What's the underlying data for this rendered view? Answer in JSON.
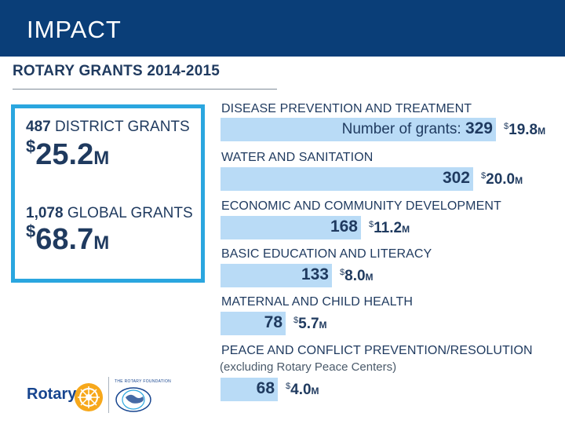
{
  "header": {
    "title": "IMPACT"
  },
  "section": {
    "title": "ROTARY GRANTS 2014-2015"
  },
  "summary": {
    "district": {
      "count": "487",
      "label": "DISTRICT GRANTS",
      "dollar": "$",
      "amount": "25.2",
      "unit": "M"
    },
    "global": {
      "count": "1,078",
      "label": "GLOBAL GRANTS",
      "dollar": "$",
      "amount": "68.7",
      "unit": "M"
    }
  },
  "categories": [
    {
      "label": "DISEASE PREVENTION AND TREATMENT",
      "prefix": "Number of grants: ",
      "grants": "329",
      "dollar": "$",
      "amount": "19.8",
      "unit": "M",
      "grants_value": 329
    },
    {
      "label": "WATER AND SANITATION",
      "prefix": "",
      "grants": "302",
      "dollar": "$",
      "amount": "20.0",
      "unit": "M",
      "grants_value": 302
    },
    {
      "label": "ECONOMIC AND COMMUNITY DEVELOPMENT",
      "prefix": "",
      "grants": "168",
      "dollar": "$",
      "amount": "11.2",
      "unit": "M",
      "grants_value": 168
    },
    {
      "label": "BASIC EDUCATION AND LITERACY",
      "prefix": "",
      "grants": "133",
      "dollar": "$",
      "amount": "8.0",
      "unit": "M",
      "grants_value": 133
    },
    {
      "label": "MATERNAL AND CHILD HEALTH",
      "prefix": "",
      "grants": "78",
      "dollar": "$",
      "amount": "5.7",
      "unit": "M",
      "grants_value": 78
    },
    {
      "label": "PEACE AND CONFLICT PREVENTION/RESOLUTION",
      "sublabel": "(excluding Rotary Peace Centers)",
      "prefix": "",
      "grants": "68",
      "dollar": "$",
      "amount": "4.0",
      "unit": "M",
      "grants_value": 68
    }
  ],
  "footer": {
    "rotary": "Rotary",
    "foundation": "THE ROTARY FOUNDATION",
    "icons": {
      "wheel": "rotary-wheel-icon",
      "globe": "centennial-globe-icon"
    }
  },
  "colors": {
    "header": "#0a3e78",
    "box_border": "#2aa6df",
    "bar": "#b9dbf6",
    "text": "#1f3a5f"
  }
}
